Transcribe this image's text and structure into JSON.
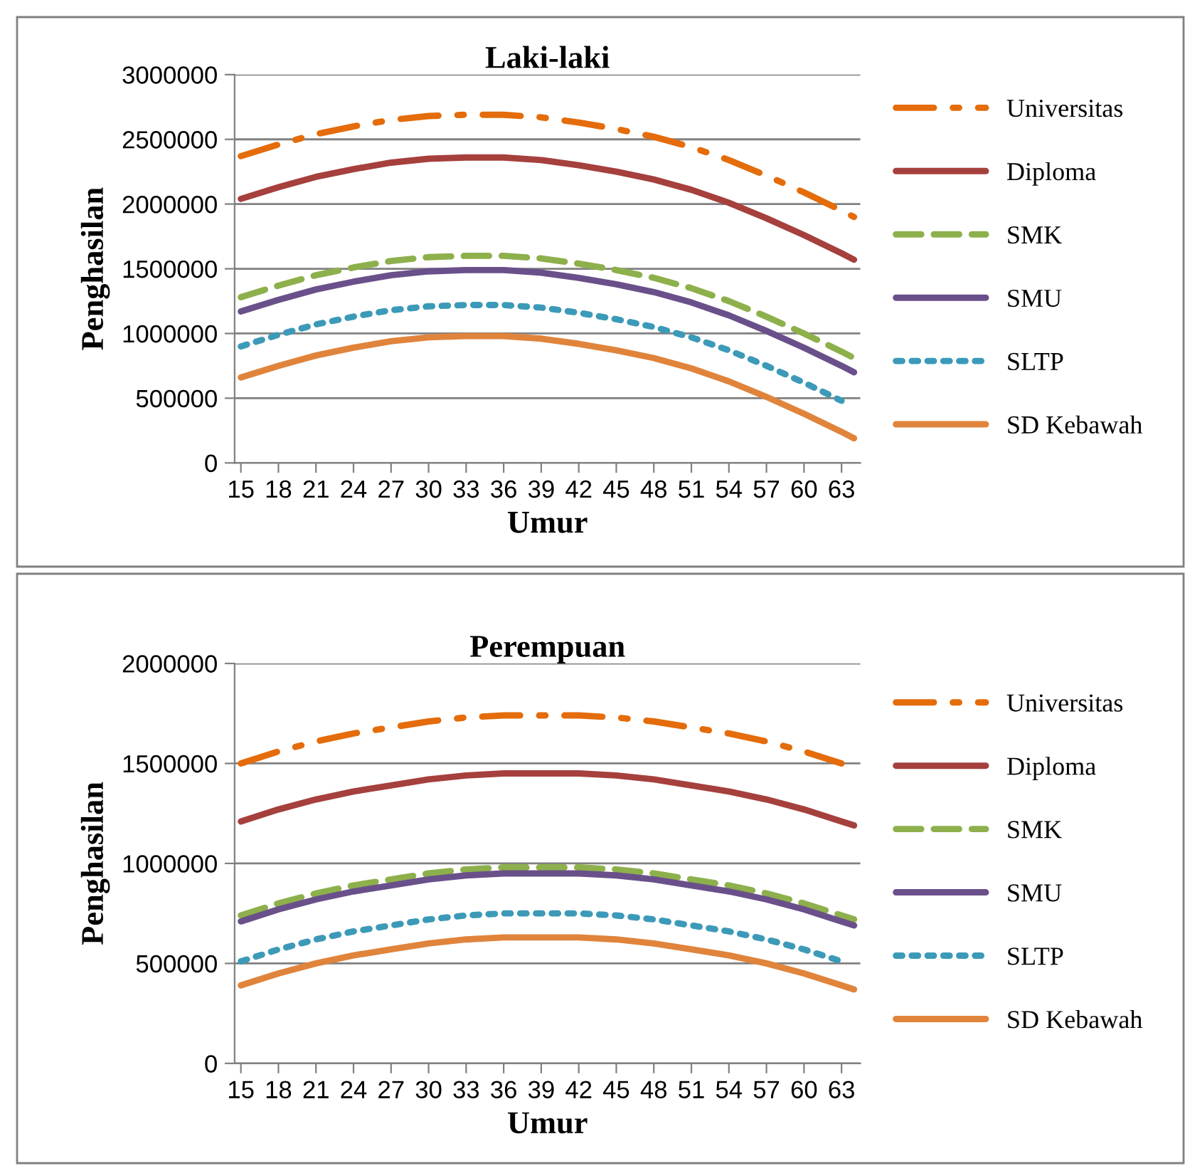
{
  "chart_data": [
    {
      "type": "line",
      "title": "Laki-laki",
      "xlabel": "Umur",
      "ylabel": "Penghasilan",
      "x": [
        15,
        18,
        21,
        24,
        27,
        30,
        33,
        36,
        39,
        42,
        45,
        48,
        51,
        54,
        57,
        60,
        63,
        64
      ],
      "xlim": [
        14.5,
        64.5
      ],
      "xticks": [
        15,
        18,
        21,
        24,
        27,
        30,
        33,
        36,
        39,
        42,
        45,
        48,
        51,
        54,
        57,
        60,
        63
      ],
      "ylim": [
        0,
        3000000
      ],
      "yticks": [
        0,
        500000,
        1000000,
        1500000,
        2000000,
        2500000,
        3000000
      ],
      "grid": "y",
      "legend": "right",
      "marker": "none",
      "series": [
        {
          "name": "Universitas",
          "color": "#e46c0a",
          "line_style": "dashdot",
          "values": [
            2370000,
            2460000,
            2540000,
            2600000,
            2650000,
            2680000,
            2690000,
            2690000,
            2670000,
            2630000,
            2580000,
            2520000,
            2440000,
            2340000,
            2220000,
            2090000,
            1950000,
            1900000
          ]
        },
        {
          "name": "Diploma",
          "color": "#a5403d",
          "line_style": "solid",
          "values": [
            2040000,
            2130000,
            2210000,
            2270000,
            2320000,
            2350000,
            2360000,
            2360000,
            2340000,
            2300000,
            2250000,
            2190000,
            2110000,
            2010000,
            1890000,
            1760000,
            1620000,
            1570000
          ]
        },
        {
          "name": "SMK",
          "color": "#8db04c",
          "line_style": "dashed",
          "values": [
            1280000,
            1370000,
            1450000,
            1510000,
            1560000,
            1590000,
            1600000,
            1600000,
            1580000,
            1540000,
            1490000,
            1430000,
            1350000,
            1250000,
            1130000,
            1000000,
            860000,
            810000
          ]
        },
        {
          "name": "SMU",
          "color": "#6a508a",
          "line_style": "solid",
          "values": [
            1170000,
            1260000,
            1340000,
            1400000,
            1450000,
            1480000,
            1490000,
            1490000,
            1470000,
            1430000,
            1380000,
            1320000,
            1240000,
            1140000,
            1020000,
            890000,
            750000,
            700000
          ]
        },
        {
          "name": "SLTP",
          "color": "#3c9ab8",
          "line_style": "dotted",
          "values": [
            900000,
            990000,
            1070000,
            1130000,
            1180000,
            1210000,
            1220000,
            1220000,
            1200000,
            1160000,
            1110000,
            1050000,
            970000,
            870000,
            750000,
            620000,
            480000,
            null
          ]
        },
        {
          "name": "SD Kebawah",
          "color": "#e0843c",
          "line_style": "solid",
          "values": [
            660000,
            750000,
            830000,
            890000,
            940000,
            970000,
            980000,
            980000,
            960000,
            920000,
            870000,
            810000,
            730000,
            630000,
            510000,
            380000,
            240000,
            190000
          ]
        }
      ]
    },
    {
      "type": "line",
      "title": "Perempuan",
      "xlabel": "Umur",
      "ylabel": "Penghasilan",
      "x": [
        15,
        18,
        21,
        24,
        27,
        30,
        33,
        36,
        39,
        42,
        45,
        48,
        51,
        54,
        57,
        60,
        63,
        64
      ],
      "xlim": [
        14.5,
        64.5
      ],
      "xticks": [
        15,
        18,
        21,
        24,
        27,
        30,
        33,
        36,
        39,
        42,
        45,
        48,
        51,
        54,
        57,
        60,
        63
      ],
      "ylim": [
        0,
        2000000
      ],
      "yticks": [
        0,
        500000,
        1000000,
        1500000,
        2000000
      ],
      "grid": "y",
      "legend": "right",
      "marker": "none",
      "series": [
        {
          "name": "Universitas",
          "color": "#e46c0a",
          "line_style": "dashdot",
          "values": [
            1500000,
            1560000,
            1610000,
            1650000,
            1680000,
            1710000,
            1730000,
            1740000,
            1740000,
            1740000,
            1730000,
            1710000,
            1680000,
            1650000,
            1610000,
            1560000,
            1500000,
            null
          ]
        },
        {
          "name": "Diploma",
          "color": "#a5403d",
          "line_style": "solid",
          "values": [
            1210000,
            1270000,
            1320000,
            1360000,
            1390000,
            1420000,
            1440000,
            1450000,
            1450000,
            1450000,
            1440000,
            1420000,
            1390000,
            1360000,
            1320000,
            1270000,
            1210000,
            1190000
          ]
        },
        {
          "name": "SMK",
          "color": "#8db04c",
          "line_style": "dashed",
          "values": [
            740000,
            800000,
            850000,
            890000,
            920000,
            950000,
            970000,
            980000,
            980000,
            980000,
            970000,
            950000,
            920000,
            890000,
            850000,
            800000,
            740000,
            720000
          ]
        },
        {
          "name": "SMU",
          "color": "#6a508a",
          "line_style": "solid",
          "values": [
            710000,
            770000,
            820000,
            860000,
            890000,
            920000,
            940000,
            950000,
            950000,
            950000,
            940000,
            920000,
            890000,
            860000,
            820000,
            770000,
            710000,
            690000
          ]
        },
        {
          "name": "SLTP",
          "color": "#3c9ab8",
          "line_style": "dotted",
          "values": [
            510000,
            570000,
            620000,
            660000,
            690000,
            720000,
            740000,
            750000,
            750000,
            750000,
            740000,
            720000,
            690000,
            660000,
            620000,
            570000,
            510000,
            null
          ]
        },
        {
          "name": "SD Kebawah",
          "color": "#e0843c",
          "line_style": "solid",
          "values": [
            390000,
            450000,
            500000,
            540000,
            570000,
            600000,
            620000,
            630000,
            630000,
            630000,
            620000,
            600000,
            570000,
            540000,
            500000,
            450000,
            390000,
            370000
          ]
        }
      ]
    }
  ]
}
